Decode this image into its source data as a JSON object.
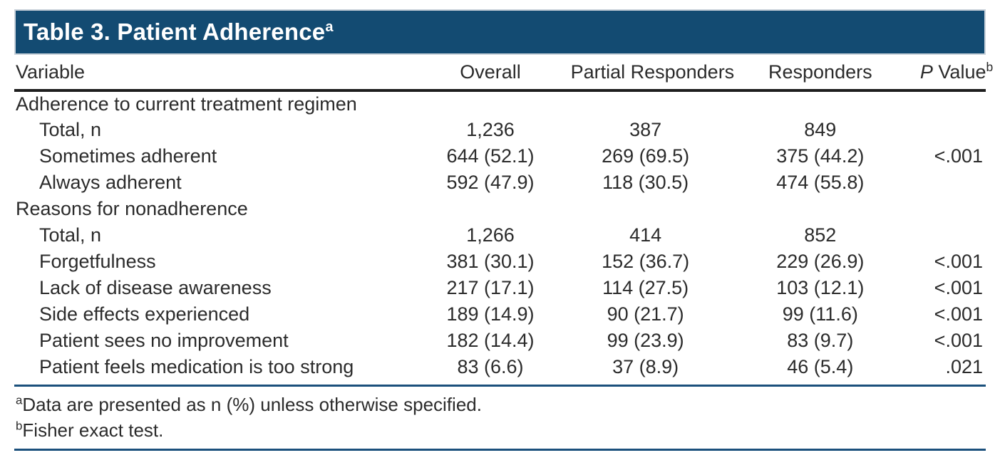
{
  "title": {
    "text": "Table 3. Patient Adherence",
    "superscript": "a"
  },
  "columns": {
    "variable": "Variable",
    "overall": "Overall",
    "partial": "Partial Responders",
    "responders": "Responders",
    "p_value": {
      "italic": "P",
      "rest": " Value",
      "superscript": "b"
    }
  },
  "chart_data": {
    "type": "table",
    "title": "Table 3. Patient Adherence",
    "columns": [
      "Variable",
      "Overall",
      "Partial Responders",
      "Responders",
      "P Value"
    ],
    "rows": [
      {
        "type": "section",
        "label": "Adherence to current treatment regimen"
      },
      {
        "type": "data",
        "label": "Total, n",
        "overall": "1,236",
        "partial": "387",
        "responders": "849",
        "p": ""
      },
      {
        "type": "data",
        "label": "Sometimes adherent",
        "overall": "644 (52.1)",
        "partial": "269 (69.5)",
        "responders": "375 (44.2)",
        "p": "<.001"
      },
      {
        "type": "data",
        "label": "Always adherent",
        "overall": "592 (47.9)",
        "partial": "118 (30.5)",
        "responders": "474 (55.8)",
        "p": ""
      },
      {
        "type": "section",
        "label": "Reasons for nonadherence"
      },
      {
        "type": "data",
        "label": "Total, n",
        "overall": "1,266",
        "partial": "414",
        "responders": "852",
        "p": ""
      },
      {
        "type": "data",
        "label": "Forgetfulness",
        "overall": "381 (30.1)",
        "partial": "152 (36.7)",
        "responders": "229 (26.9)",
        "p": "<.001"
      },
      {
        "type": "data",
        "label": "Lack of disease awareness",
        "overall": "217 (17.1)",
        "partial": "114 (27.5)",
        "responders": "103 (12.1)",
        "p": "<.001"
      },
      {
        "type": "data",
        "label": "Side effects experienced",
        "overall": "189 (14.9)",
        "partial": "90 (21.7)",
        "responders": "99 (11.6)",
        "p": "<.001"
      },
      {
        "type": "data",
        "label": "Patient sees no improvement",
        "overall": "182 (14.4)",
        "partial": "99 (23.9)",
        "responders": "83 (9.7)",
        "p": "<.001"
      },
      {
        "type": "data",
        "label": "Patient feels medication is too strong",
        "overall": "83 (6.6)",
        "partial": "37 (8.9)",
        "responders": "46 (5.4)",
        "p": ".021"
      }
    ]
  },
  "footnotes": [
    {
      "marker": "a",
      "text": "Data are presented as n (%) unless otherwise specified."
    },
    {
      "marker": "b",
      "text": "Fisher exact test."
    }
  ],
  "colors": {
    "title_bar": "#134b72",
    "rule_blue": "#1b507c",
    "header_rule": "#1e1e1e",
    "text": "#2b2b2b",
    "title_text": "#ffffff"
  }
}
